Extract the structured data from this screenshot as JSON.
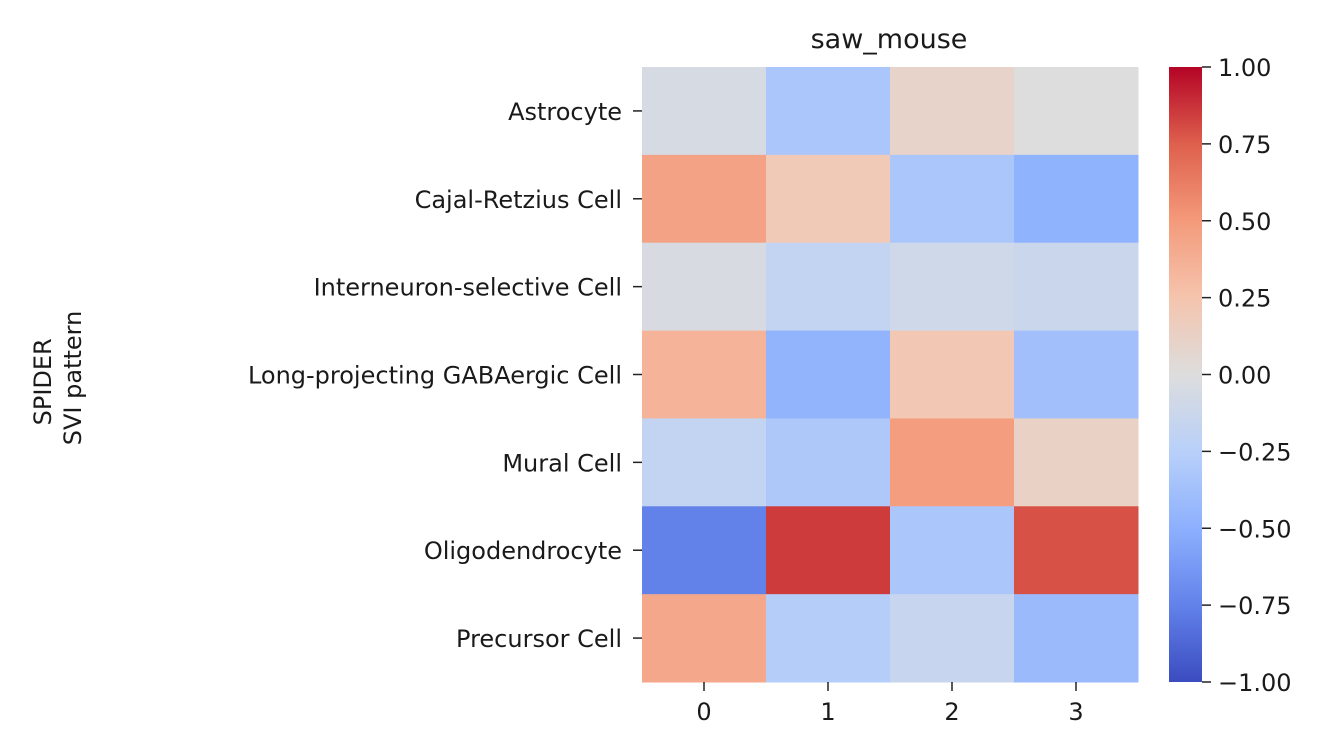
{
  "chart_data": {
    "type": "heatmap",
    "title": "saw_mouse",
    "xlabel": "",
    "ylabel_lines": [
      "SPIDER",
      "SVI pattern"
    ],
    "x_categories": [
      "0",
      "1",
      "2",
      "3"
    ],
    "y_categories": [
      "Astrocyte",
      "Cajal-Retzius Cell",
      "Interneuron-selective Cell",
      "Long-projecting GABAergic Cell",
      "Mural Cell",
      "Oligodendrocyte",
      "Precursor Cell"
    ],
    "values": [
      [
        -0.05,
        -0.33,
        0.1,
        0.0
      ],
      [
        0.45,
        0.2,
        -0.33,
        -0.48
      ],
      [
        -0.04,
        -0.18,
        -0.1,
        -0.13
      ],
      [
        0.35,
        -0.47,
        0.22,
        -0.38
      ],
      [
        -0.18,
        -0.31,
        0.48,
        0.12
      ],
      [
        -0.75,
        0.85,
        -0.33,
        0.79
      ],
      [
        0.42,
        -0.27,
        -0.15,
        -0.42
      ]
    ],
    "colormap": "coolwarm",
    "vmin": -1.0,
    "vmax": 1.0,
    "colorbar_ticks": [
      "1.00",
      "0.75",
      "0.50",
      "0.25",
      "0.00",
      "−0.25",
      "−0.50",
      "−0.75",
      "−1.00"
    ],
    "colorbar_tick_values": [
      1.0,
      0.75,
      0.5,
      0.25,
      0.0,
      -0.25,
      -0.5,
      -0.75,
      -1.0
    ],
    "grid": false
  }
}
